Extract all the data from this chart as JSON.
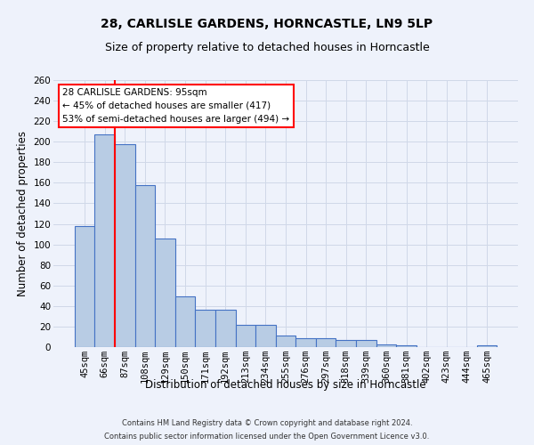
{
  "title": "28, CARLISLE GARDENS, HORNCASTLE, LN9 5LP",
  "subtitle": "Size of property relative to detached houses in Horncastle",
  "xlabel": "Distribution of detached houses by size in Horncastle",
  "ylabel": "Number of detached properties",
  "categories": [
    "45sqm",
    "66sqm",
    "87sqm",
    "108sqm",
    "129sqm",
    "150sqm",
    "171sqm",
    "192sqm",
    "213sqm",
    "234sqm",
    "255sqm",
    "276sqm",
    "297sqm",
    "318sqm",
    "339sqm",
    "360sqm",
    "381sqm",
    "402sqm",
    "423sqm",
    "444sqm",
    "465sqm"
  ],
  "values": [
    118,
    207,
    198,
    158,
    106,
    49,
    36,
    36,
    22,
    22,
    11,
    9,
    9,
    7,
    7,
    3,
    2,
    0,
    0,
    0,
    2
  ],
  "bar_color": "#b8cce4",
  "bar_edge_color": "#4472c4",
  "grid_color": "#d0d8e8",
  "background_color": "#eef2fb",
  "annotation_box_text": "28 CARLISLE GARDENS: 95sqm\n← 45% of detached houses are smaller (417)\n53% of semi-detached houses are larger (494) →",
  "footer_line1": "Contains HM Land Registry data © Crown copyright and database right 2024.",
  "footer_line2": "Contains public sector information licensed under the Open Government Licence v3.0.",
  "ylim": [
    0,
    260
  ],
  "title_fontsize": 10,
  "subtitle_fontsize": 9,
  "xlabel_fontsize": 8.5,
  "ylabel_fontsize": 8.5,
  "tick_fontsize": 7.5,
  "footer_fontsize": 6,
  "annot_fontsize": 7.5
}
